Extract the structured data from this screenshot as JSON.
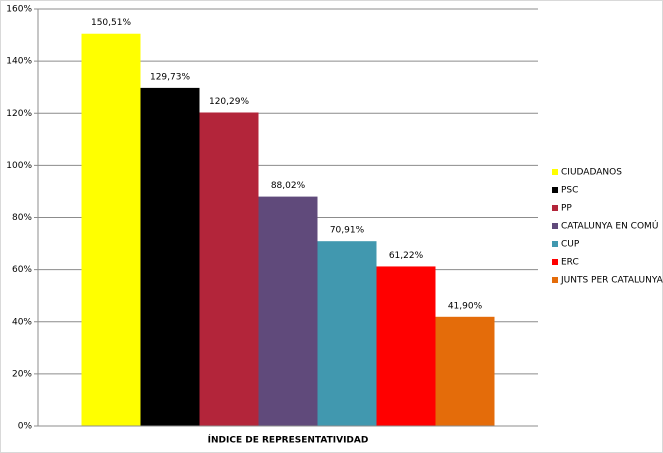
{
  "chart_data": {
    "type": "bar",
    "categories": [
      "ÍNDICE DE REPRESENTATIVIDAD"
    ],
    "series": [
      {
        "name": "CIUDADANOS",
        "color": "#ffff00",
        "values": [
          150.51
        ],
        "value_labels": [
          "150,51%"
        ]
      },
      {
        "name": "PSC",
        "color": "#000000",
        "values": [
          129.73
        ],
        "value_labels": [
          "129,73%"
        ]
      },
      {
        "name": "PP",
        "color": "#b3253a",
        "values": [
          120.29
        ],
        "value_labels": [
          "120,29%"
        ]
      },
      {
        "name": "CATALUNYA EN COMÚ",
        "color": "#604a7b",
        "values": [
          88.02
        ],
        "value_labels": [
          "88,02%"
        ]
      },
      {
        "name": "CUP",
        "color": "#4198af",
        "values": [
          70.91
        ],
        "value_labels": [
          "70,91%"
        ]
      },
      {
        "name": "ERC",
        "color": "#ff0000",
        "values": [
          61.22
        ],
        "value_labels": [
          "61,22%"
        ]
      },
      {
        "name": "JUNTS PER CATALUNYA",
        "color": "#e46c0a",
        "values": [
          41.9
        ],
        "value_labels": [
          "41,90%"
        ]
      }
    ],
    "ylim": [
      0,
      160
    ],
    "yticks": [
      {
        "value": 0,
        "label": "0%"
      },
      {
        "value": 20,
        "label": "20%"
      },
      {
        "value": 40,
        "label": "40%"
      },
      {
        "value": 60,
        "label": "60%"
      },
      {
        "value": 80,
        "label": "80%"
      },
      {
        "value": 100,
        "label": "100%"
      },
      {
        "value": 120,
        "label": "120%"
      },
      {
        "value": 140,
        "label": "140%"
      },
      {
        "value": 160,
        "label": "160%"
      }
    ],
    "grid": true,
    "legend": "right"
  }
}
